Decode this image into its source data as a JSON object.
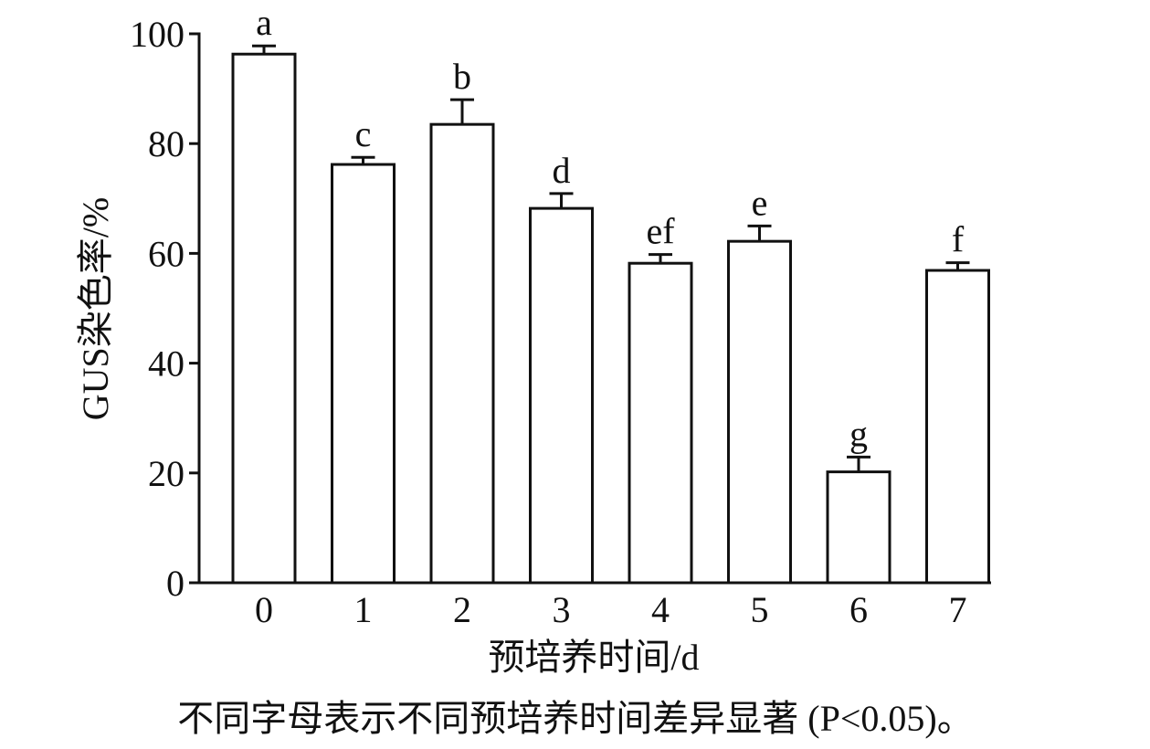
{
  "chart_data": {
    "type": "bar",
    "categories": [
      "0",
      "1",
      "2",
      "3",
      "4",
      "5",
      "6",
      "7"
    ],
    "values": [
      96.3,
      76.2,
      83.5,
      68.2,
      58.2,
      62.2,
      20.2,
      56.9
    ],
    "errors": [
      1.5,
      1.3,
      4.5,
      2.7,
      1.6,
      2.8,
      2.7,
      1.4
    ],
    "significance_labels": [
      "a",
      "c",
      "b",
      "d",
      "ef",
      "e",
      "g",
      "f"
    ],
    "title": "",
    "xlabel": "预培养时间/d",
    "ylabel": "GUS染色率/%",
    "ylim": [
      0,
      100
    ],
    "yticks": [
      0,
      20,
      40,
      60,
      80,
      100
    ],
    "grid": false,
    "bar_fill": "#ffffff",
    "bar_stroke": "#111111"
  },
  "caption": "不同字母表示不同预培养时间差异显著 (P<0.05)。"
}
